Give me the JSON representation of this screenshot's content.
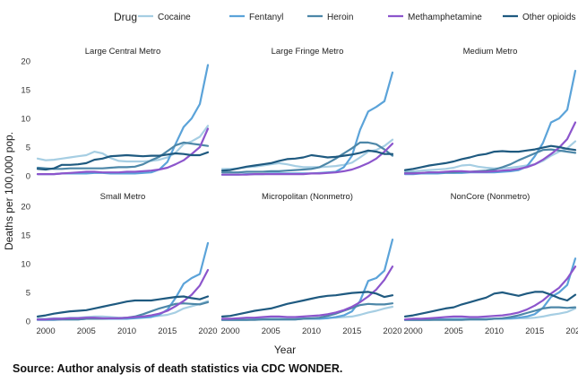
{
  "legend": {
    "title": "Drug"
  },
  "axes": {
    "xlabel": "Year",
    "ylabel": "Deaths per 100,000 pop.",
    "x_ticks": [
      "2000",
      "2005",
      "2010",
      "2015",
      "2020"
    ],
    "y_ticks": [
      "0",
      "5",
      "10",
      "15",
      "20"
    ]
  },
  "source": "Source: Author analysis of death statistics via CDC WONDER.",
  "chart_data": {
    "type": "line",
    "xlim": [
      1999,
      2020
    ],
    "ylim": [
      0,
      20
    ],
    "grid": false,
    "legend_position": "top",
    "x": [
      1999,
      2000,
      2001,
      2002,
      2003,
      2004,
      2005,
      2006,
      2007,
      2008,
      2009,
      2010,
      2011,
      2012,
      2013,
      2014,
      2015,
      2016,
      2017,
      2018,
      2019,
      2020
    ],
    "series_styles": [
      {
        "name": "Cocaine",
        "color": "#a6cee3"
      },
      {
        "name": "Fentanyl",
        "color": "#5ba3d9"
      },
      {
        "name": "Heroin",
        "color": "#4d87a8"
      },
      {
        "name": "Methamphetamine",
        "color": "#8c55cc"
      },
      {
        "name": "Other opioids",
        "color": "#1f5a80"
      }
    ],
    "panels": [
      {
        "title": "Large Central Metro",
        "series": [
          {
            "name": "Cocaine",
            "values": [
              3.0,
              2.7,
              2.8,
              3.0,
              3.2,
              3.4,
              3.6,
              4.2,
              3.9,
              3.1,
              2.6,
              2.5,
              2.5,
              2.5,
              2.6,
              2.8,
              3.2,
              4.0,
              5.5,
              6.0,
              6.8,
              8.7
            ]
          },
          {
            "name": "Fentanyl",
            "values": [
              0.3,
              0.3,
              0.3,
              0.4,
              0.4,
              0.4,
              0.4,
              0.5,
              0.5,
              0.4,
              0.4,
              0.4,
              0.4,
              0.5,
              0.6,
              1.1,
              2.4,
              5.5,
              8.5,
              10.0,
              12.5,
              19.3
            ]
          },
          {
            "name": "Heroin",
            "values": [
              1.4,
              1.3,
              1.2,
              1.2,
              1.3,
              1.3,
              1.3,
              1.3,
              1.3,
              1.4,
              1.5,
              1.5,
              1.6,
              2.0,
              2.7,
              3.3,
              4.3,
              5.3,
              5.8,
              5.6,
              5.4,
              5.2
            ]
          },
          {
            "name": "Methamphetamine",
            "values": [
              0.3,
              0.3,
              0.3,
              0.4,
              0.5,
              0.6,
              0.7,
              0.7,
              0.6,
              0.6,
              0.6,
              0.7,
              0.7,
              0.8,
              0.9,
              1.1,
              1.4,
              2.0,
              2.7,
              3.8,
              5.0,
              8.2
            ]
          },
          {
            "name": "Other opioids",
            "values": [
              1.2,
              1.1,
              1.3,
              1.9,
              1.9,
              2.0,
              2.2,
              2.8,
              3.0,
              3.4,
              3.5,
              3.6,
              3.5,
              3.4,
              3.5,
              3.5,
              3.7,
              3.9,
              3.8,
              3.6,
              3.6,
              4.1
            ]
          }
        ]
      },
      {
        "title": "Large Fringe Metro",
        "series": [
          {
            "name": "Cocaine",
            "values": [
              1.2,
              1.2,
              1.3,
              1.5,
              1.6,
              1.8,
              2.0,
              2.2,
              2.0,
              1.7,
              1.5,
              1.5,
              1.5,
              1.6,
              1.7,
              1.9,
              2.3,
              3.2,
              4.2,
              4.5,
              5.2,
              6.3
            ]
          },
          {
            "name": "Fentanyl",
            "values": [
              0.2,
              0.2,
              0.2,
              0.3,
              0.3,
              0.3,
              0.4,
              0.4,
              0.4,
              0.4,
              0.4,
              0.4,
              0.5,
              0.6,
              0.7,
              1.5,
              3.5,
              8.0,
              11.2,
              12.0,
              13.0,
              18.0
            ]
          },
          {
            "name": "Heroin",
            "values": [
              0.6,
              0.6,
              0.6,
              0.7,
              0.7,
              0.7,
              0.8,
              0.8,
              0.9,
              1.0,
              1.1,
              1.2,
              1.5,
              2.2,
              3.0,
              3.9,
              4.8,
              5.8,
              5.8,
              5.5,
              4.6,
              3.5
            ]
          },
          {
            "name": "Methamphetamine",
            "values": [
              0.2,
              0.2,
              0.2,
              0.2,
              0.3,
              0.3,
              0.3,
              0.3,
              0.3,
              0.3,
              0.3,
              0.4,
              0.4,
              0.5,
              0.6,
              0.8,
              1.1,
              1.6,
              2.2,
              3.0,
              4.2,
              5.6
            ]
          },
          {
            "name": "Other opioids",
            "values": [
              0.9,
              1.0,
              1.3,
              1.6,
              1.8,
              2.0,
              2.2,
              2.6,
              2.9,
              3.0,
              3.2,
              3.6,
              3.4,
              3.2,
              3.3,
              3.5,
              3.7,
              4.0,
              4.4,
              4.2,
              3.8,
              3.8
            ]
          }
        ]
      },
      {
        "title": "Medium Metro",
        "series": [
          {
            "name": "Cocaine",
            "values": [
              0.8,
              0.8,
              0.9,
              1.0,
              1.1,
              1.2,
              1.4,
              1.8,
              1.9,
              1.6,
              1.4,
              1.3,
              1.3,
              1.4,
              1.6,
              1.8,
              2.0,
              2.6,
              3.5,
              4.2,
              4.8,
              6.0
            ]
          },
          {
            "name": "Fentanyl",
            "values": [
              0.3,
              0.3,
              0.4,
              0.4,
              0.4,
              0.5,
              0.5,
              0.5,
              0.6,
              0.6,
              0.6,
              0.6,
              0.7,
              0.8,
              1.0,
              1.6,
              3.4,
              5.7,
              9.3,
              10.0,
              11.5,
              18.3
            ]
          },
          {
            "name": "Heroin",
            "values": [
              0.5,
              0.5,
              0.5,
              0.6,
              0.6,
              0.6,
              0.6,
              0.7,
              0.7,
              0.8,
              0.9,
              1.1,
              1.5,
              2.0,
              2.7,
              3.3,
              3.9,
              4.5,
              4.6,
              4.4,
              4.2,
              4.0
            ]
          },
          {
            "name": "Methamphetamine",
            "values": [
              0.4,
              0.4,
              0.5,
              0.6,
              0.6,
              0.7,
              0.8,
              0.8,
              0.7,
              0.7,
              0.7,
              0.8,
              0.9,
              1.0,
              1.2,
              1.5,
              2.0,
              2.8,
              3.8,
              4.9,
              6.4,
              9.3
            ]
          },
          {
            "name": "Other opioids",
            "values": [
              1.0,
              1.2,
              1.5,
              1.8,
              2.0,
              2.2,
              2.5,
              2.9,
              3.2,
              3.6,
              3.8,
              4.2,
              4.3,
              4.2,
              4.2,
              4.4,
              4.6,
              4.9,
              5.2,
              5.0,
              4.7,
              4.5
            ]
          }
        ]
      },
      {
        "title": "Small Metro",
        "series": [
          {
            "name": "Cocaine",
            "values": [
              0.4,
              0.4,
              0.5,
              0.5,
              0.6,
              0.6,
              0.7,
              0.8,
              0.8,
              0.7,
              0.6,
              0.6,
              0.6,
              0.7,
              0.8,
              0.9,
              1.1,
              1.5,
              2.2,
              2.6,
              3.0,
              3.5
            ]
          },
          {
            "name": "Fentanyl",
            "values": [
              0.2,
              0.2,
              0.2,
              0.3,
              0.3,
              0.3,
              0.4,
              0.4,
              0.4,
              0.4,
              0.4,
              0.4,
              0.5,
              0.6,
              0.7,
              1.1,
              2.0,
              4.0,
              6.5,
              7.5,
              8.2,
              13.6
            ]
          },
          {
            "name": "Heroin",
            "values": [
              0.3,
              0.3,
              0.3,
              0.3,
              0.3,
              0.3,
              0.4,
              0.4,
              0.4,
              0.5,
              0.5,
              0.6,
              0.8,
              1.2,
              1.7,
              2.2,
              2.6,
              3.0,
              3.1,
              3.0,
              2.9,
              3.3
            ]
          },
          {
            "name": "Methamphetamine",
            "values": [
              0.3,
              0.3,
              0.4,
              0.4,
              0.5,
              0.5,
              0.6,
              0.6,
              0.5,
              0.5,
              0.5,
              0.6,
              0.7,
              0.8,
              1.0,
              1.3,
              1.8,
              2.6,
              3.5,
              4.6,
              6.2,
              8.9
            ]
          },
          {
            "name": "Other opioids",
            "values": [
              0.8,
              1.0,
              1.3,
              1.5,
              1.7,
              1.8,
              1.9,
              2.2,
              2.5,
              2.8,
              3.1,
              3.4,
              3.6,
              3.6,
              3.6,
              3.8,
              4.0,
              4.2,
              4.3,
              4.0,
              3.8,
              4.3
            ]
          }
        ]
      },
      {
        "title": "Micropolitan (Nonmetro)",
        "series": [
          {
            "name": "Cocaine",
            "values": [
              0.3,
              0.3,
              0.3,
              0.4,
              0.4,
              0.5,
              0.5,
              0.6,
              0.6,
              0.5,
              0.5,
              0.5,
              0.5,
              0.6,
              0.6,
              0.7,
              0.8,
              1.1,
              1.5,
              1.8,
              2.2,
              2.5
            ]
          },
          {
            "name": "Fentanyl",
            "values": [
              0.2,
              0.2,
              0.2,
              0.2,
              0.3,
              0.3,
              0.3,
              0.3,
              0.3,
              0.3,
              0.4,
              0.4,
              0.4,
              0.5,
              0.7,
              1.0,
              1.7,
              3.5,
              7.0,
              7.5,
              8.8,
              14.2
            ]
          },
          {
            "name": "Heroin",
            "values": [
              0.2,
              0.2,
              0.2,
              0.2,
              0.2,
              0.3,
              0.3,
              0.3,
              0.3,
              0.3,
              0.4,
              0.5,
              0.6,
              0.9,
              1.3,
              1.8,
              2.3,
              2.8,
              3.0,
              2.9,
              2.9,
              3.1
            ]
          },
          {
            "name": "Methamphetamine",
            "values": [
              0.4,
              0.4,
              0.5,
              0.6,
              0.6,
              0.7,
              0.8,
              0.8,
              0.7,
              0.7,
              0.8,
              0.9,
              1.0,
              1.2,
              1.5,
              1.9,
              2.5,
              3.3,
              4.3,
              5.5,
              7.2,
              9.5
            ]
          },
          {
            "name": "Other opioids",
            "values": [
              0.8,
              0.9,
              1.2,
              1.5,
              1.8,
              2.0,
              2.2,
              2.6,
              3.0,
              3.3,
              3.6,
              3.9,
              4.2,
              4.4,
              4.5,
              4.7,
              4.9,
              5.0,
              5.1,
              4.8,
              4.2,
              4.5
            ]
          }
        ]
      },
      {
        "title": "NonCore (Nonmetro)",
        "series": [
          {
            "name": "Cocaine",
            "values": [
              0.2,
              0.2,
              0.2,
              0.3,
              0.3,
              0.3,
              0.4,
              0.4,
              0.4,
              0.4,
              0.4,
              0.4,
              0.4,
              0.4,
              0.5,
              0.5,
              0.6,
              0.8,
              1.1,
              1.3,
              1.6,
              2.2
            ]
          },
          {
            "name": "Fentanyl",
            "values": [
              0.2,
              0.2,
              0.2,
              0.2,
              0.3,
              0.3,
              0.3,
              0.3,
              0.3,
              0.3,
              0.3,
              0.4,
              0.4,
              0.5,
              0.6,
              0.8,
              1.2,
              2.3,
              4.2,
              5.0,
              6.3,
              10.9
            ]
          },
          {
            "name": "Heroin",
            "values": [
              0.2,
              0.2,
              0.2,
              0.2,
              0.2,
              0.2,
              0.2,
              0.2,
              0.3,
              0.3,
              0.3,
              0.4,
              0.5,
              0.7,
              1.0,
              1.4,
              1.8,
              2.2,
              2.4,
              2.4,
              2.3,
              2.4
            ]
          },
          {
            "name": "Methamphetamine",
            "values": [
              0.3,
              0.4,
              0.4,
              0.5,
              0.6,
              0.7,
              0.8,
              0.8,
              0.7,
              0.7,
              0.8,
              0.9,
              1.0,
              1.2,
              1.5,
              2.0,
              2.7,
              3.6,
              4.8,
              5.8,
              7.4,
              9.5
            ]
          },
          {
            "name": "Other opioids",
            "values": [
              0.8,
              1.0,
              1.3,
              1.6,
              1.9,
              2.2,
              2.4,
              2.9,
              3.3,
              3.7,
              4.1,
              4.8,
              5.0,
              4.7,
              4.4,
              4.8,
              5.1,
              5.1,
              4.6,
              4.0,
              3.6,
              4.6
            ]
          }
        ]
      }
    ]
  }
}
